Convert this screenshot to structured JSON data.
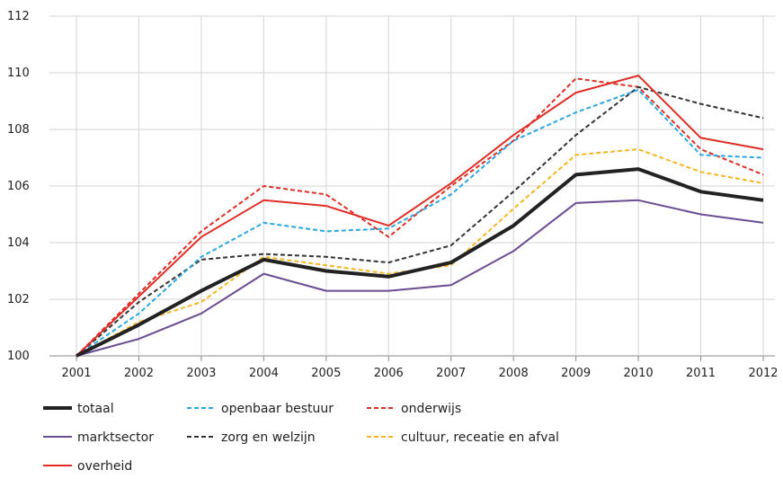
{
  "chart_data": {
    "type": "line",
    "title": "",
    "xlabel": "",
    "ylabel": "",
    "x": [
      "2001",
      "2002",
      "2003",
      "2004",
      "2005",
      "2006",
      "2007",
      "2008",
      "2009",
      "2010",
      "2011",
      "2012"
    ],
    "ylim": [
      100,
      112
    ],
    "yticks": [
      100,
      102,
      104,
      106,
      108,
      110,
      112
    ],
    "grid": true,
    "legend_position": "bottom",
    "series": [
      {
        "name": "totaal",
        "color": "#222222",
        "style": "solid",
        "weight": "bold",
        "values": [
          100.0,
          101.1,
          102.3,
          103.4,
          103.0,
          102.8,
          103.3,
          104.6,
          106.4,
          106.6,
          105.8,
          105.5
        ]
      },
      {
        "name": "marktsector",
        "color": "#6a4c93",
        "style": "solid",
        "weight": "normal",
        "values": [
          100.0,
          100.6,
          101.5,
          102.9,
          102.3,
          102.3,
          102.5,
          103.7,
          105.4,
          105.5,
          105.0,
          104.7
        ]
      },
      {
        "name": "overheid",
        "color": "#e02d26",
        "style": "solid",
        "weight": "normal",
        "values": [
          100.0,
          102.1,
          104.2,
          105.5,
          105.3,
          104.6,
          106.1,
          107.8,
          109.3,
          109.9,
          107.7,
          107.3
        ]
      },
      {
        "name": "openbaar bestuur",
        "color": "#2aa7df",
        "style": "dashed",
        "weight": "normal",
        "values": [
          100.0,
          101.5,
          103.5,
          104.7,
          104.4,
          104.5,
          105.7,
          107.6,
          108.6,
          109.4,
          107.1,
          107.0
        ]
      },
      {
        "name": "zorg en welzijn",
        "color": "#333333",
        "style": "dashed",
        "weight": "normal",
        "values": [
          100.0,
          101.9,
          103.4,
          103.6,
          103.5,
          103.3,
          103.9,
          105.8,
          107.8,
          109.5,
          108.9,
          108.4
        ]
      },
      {
        "name": "onderwijs",
        "color": "#e02d26",
        "style": "dashed",
        "weight": "normal",
        "values": [
          100.0,
          102.2,
          104.4,
          106.0,
          105.7,
          104.2,
          106.0,
          107.6,
          109.8,
          109.5,
          107.3,
          106.4
        ]
      },
      {
        "name": "cultuur, receatie en afval",
        "color": "#f5b622",
        "style": "dashed",
        "weight": "normal",
        "values": [
          100.0,
          101.2,
          101.9,
          103.5,
          103.2,
          102.9,
          103.2,
          105.2,
          107.1,
          107.3,
          106.5,
          106.1
        ]
      }
    ]
  }
}
